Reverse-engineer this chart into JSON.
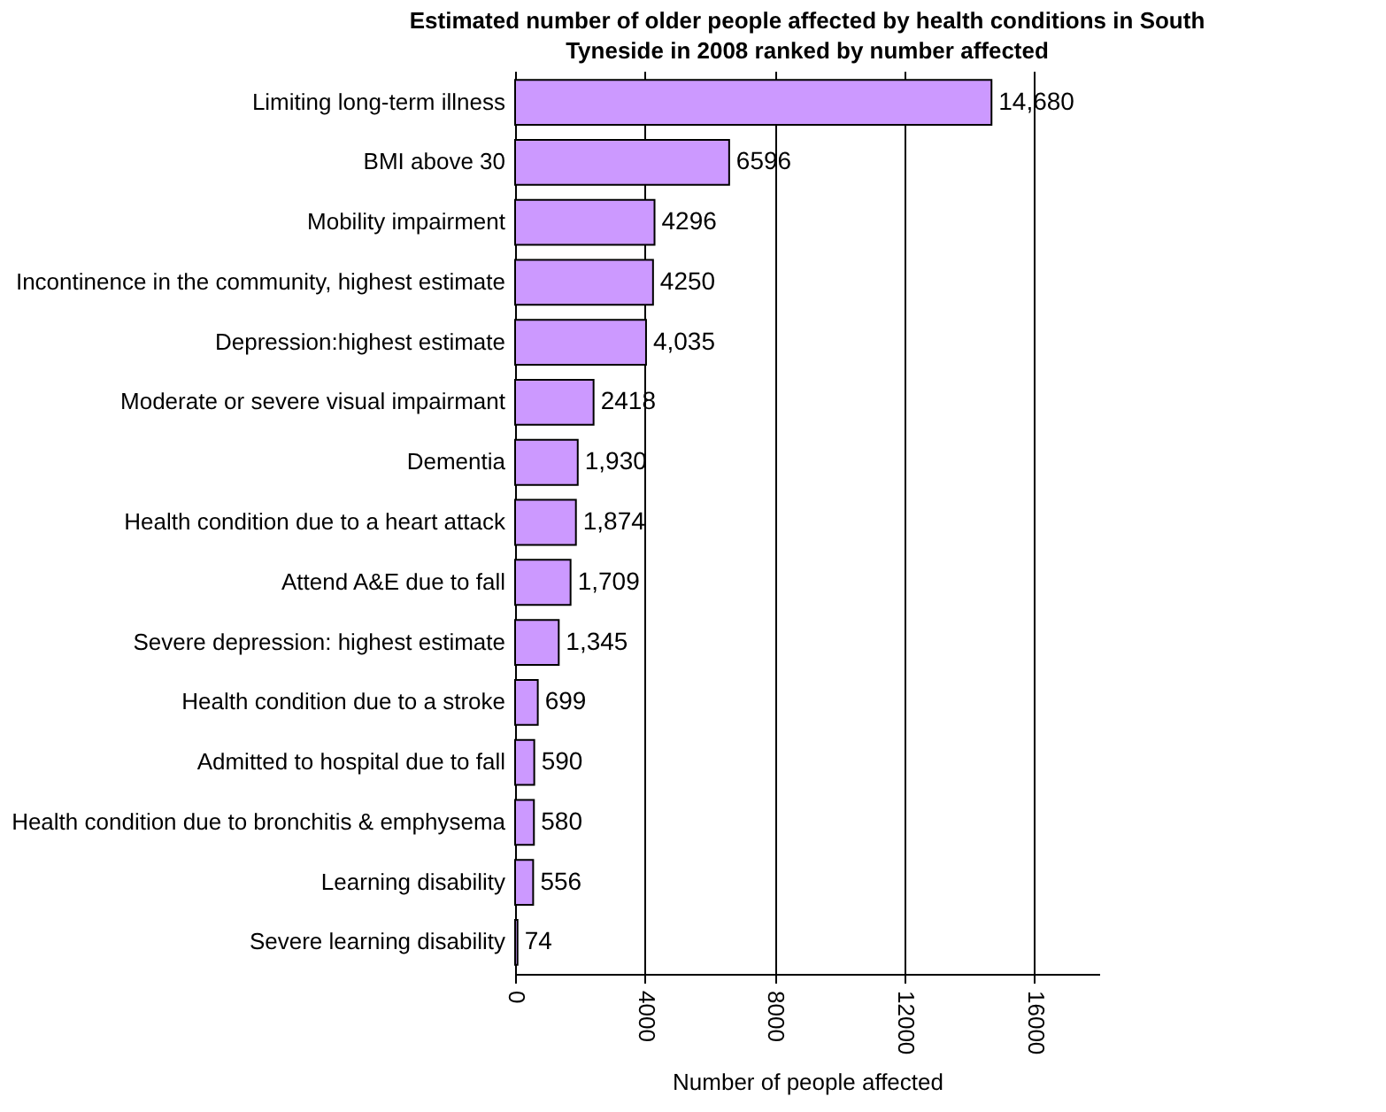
{
  "chart_data": {
    "type": "bar",
    "orientation": "horizontal",
    "title": "Estimated number of older people affected by health conditions in South Tyneside in 2008 ranked by number affected",
    "xlabel": "Number of people affected",
    "categories": [
      "Limiting long-term illness",
      "BMI above 30",
      "Mobility impairment",
      "Incontinence in the community, highest estimate",
      "Depression:highest estimate",
      "Moderate or severe visual impairmant",
      "Dementia",
      "Health condition due to a heart attack",
      "Attend A&E due to fall",
      "Severe depression: highest estimate",
      "Health condition due to a stroke",
      "Admitted to hospital due to fall",
      "Health condition due to bronchitis & emphysema",
      "Learning disability",
      "Severe learning disability"
    ],
    "values": [
      14680,
      6596,
      4296,
      4250,
      4035,
      2418,
      1930,
      1874,
      1709,
      1345,
      699,
      590,
      580,
      556,
      74
    ],
    "value_labels": [
      "14,680",
      "6596",
      "4296",
      "4250",
      "4,035",
      "2418",
      "1,930",
      "1,874",
      "1,709",
      "1,345",
      "699",
      "590",
      "580",
      "556",
      "74"
    ],
    "color": "#cc99ff",
    "xlim": [
      0,
      18000
    ],
    "xticks": [
      0,
      4000,
      8000,
      12000,
      16000
    ],
    "grid": "x"
  }
}
